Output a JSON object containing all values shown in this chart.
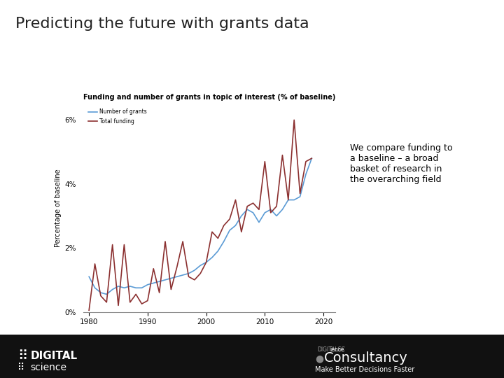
{
  "title": "Predicting the future with grants data",
  "chart_title": "Funding and number of grants in topic of interest (% of baseline)",
  "ylabel": "Percentage of baseline",
  "annotation": "We compare funding to\na baseline – a broad\nbasket of research in\nthe overarching field",
  "legend_blue": "Number of grants",
  "legend_red": "Total funding",
  "blue_color": "#5B9BD5",
  "red_color": "#8B3030",
  "background_color": "#FFFFFF",
  "footer_color": "#1a1a1a",
  "years_blue": [
    1980,
    1981,
    1982,
    1983,
    1984,
    1985,
    1986,
    1987,
    1988,
    1989,
    1990,
    1991,
    1992,
    1993,
    1994,
    1995,
    1996,
    1997,
    1998,
    1999,
    2000,
    2001,
    2002,
    2003,
    2004,
    2005,
    2006,
    2007,
    2008,
    2009,
    2010,
    2011,
    2012,
    2013,
    2014,
    2015,
    2016,
    2017,
    2018
  ],
  "values_blue": [
    1.1,
    0.75,
    0.6,
    0.55,
    0.7,
    0.8,
    0.75,
    0.8,
    0.75,
    0.75,
    0.85,
    0.9,
    0.95,
    1.0,
    1.05,
    1.1,
    1.15,
    1.2,
    1.3,
    1.45,
    1.55,
    1.7,
    1.9,
    2.2,
    2.55,
    2.7,
    3.0,
    3.2,
    3.1,
    2.8,
    3.1,
    3.2,
    3.0,
    3.2,
    3.5,
    3.5,
    3.6,
    4.3,
    4.8
  ],
  "years_red": [
    1980,
    1981,
    1982,
    1983,
    1984,
    1985,
    1986,
    1987,
    1988,
    1989,
    1990,
    1991,
    1992,
    1993,
    1994,
    1995,
    1996,
    1997,
    1998,
    1999,
    2000,
    2001,
    2002,
    2003,
    2004,
    2005,
    2006,
    2007,
    2008,
    2009,
    2010,
    2011,
    2012,
    2013,
    2014,
    2015,
    2016,
    2017,
    2018
  ],
  "values_red": [
    0.05,
    1.5,
    0.5,
    0.3,
    2.1,
    0.2,
    2.1,
    0.3,
    0.55,
    0.25,
    0.35,
    1.35,
    0.6,
    2.2,
    0.7,
    1.4,
    2.2,
    1.1,
    1.0,
    1.2,
    1.55,
    2.5,
    2.3,
    2.7,
    2.9,
    3.5,
    2.5,
    3.3,
    3.4,
    3.2,
    4.7,
    3.1,
    3.3,
    4.9,
    3.5,
    6.0,
    3.7,
    4.7,
    4.8
  ],
  "xlim": [
    1979,
    2022
  ],
  "ylim": [
    0,
    0.065
  ],
  "yticks": [
    0,
    0.02,
    0.04,
    0.06
  ],
  "ytick_labels": [
    "0%",
    "2%",
    "4%",
    "6%"
  ],
  "xticks": [
    1980,
    1990,
    2000,
    2010,
    2020
  ]
}
